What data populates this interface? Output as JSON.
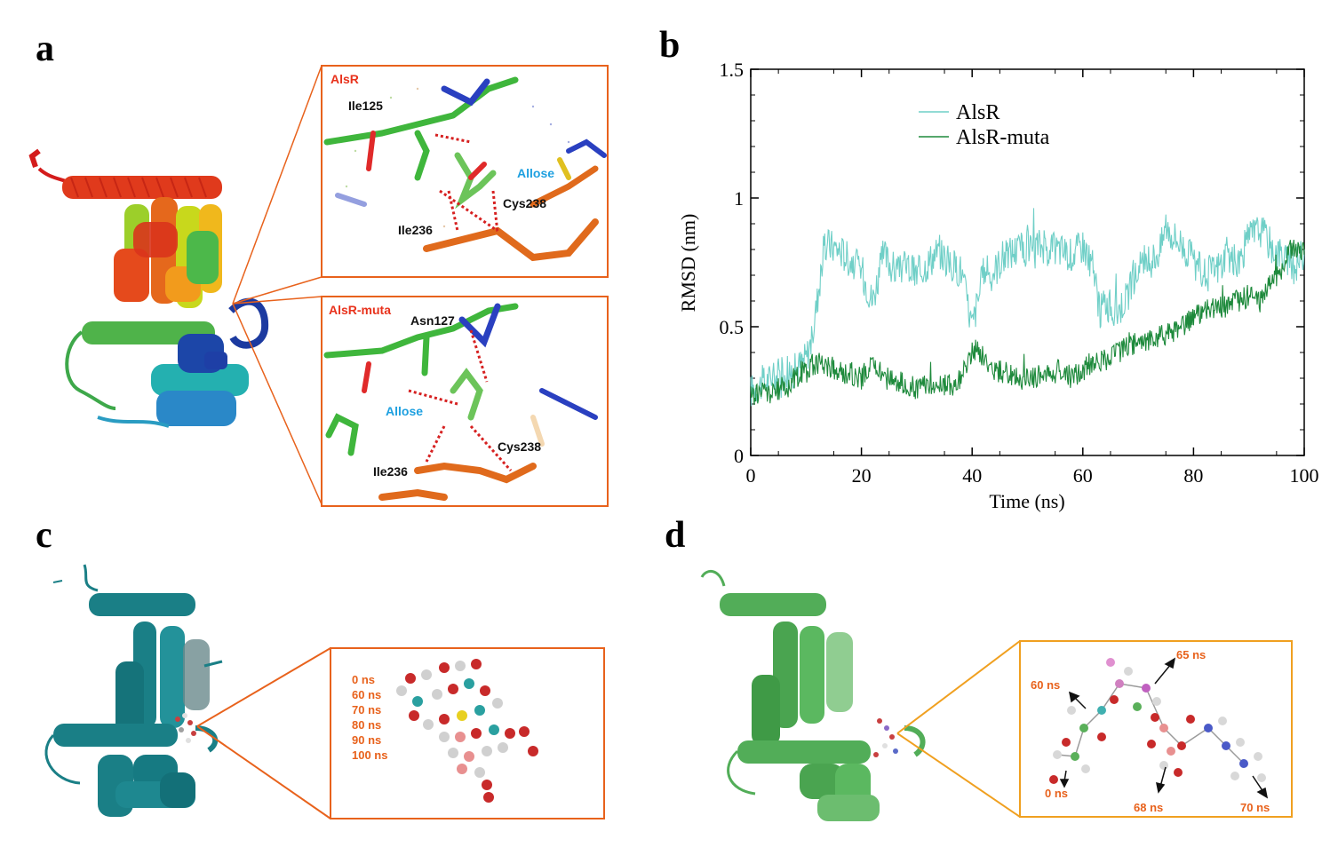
{
  "panels": {
    "a": {
      "letter": "a",
      "top_inset": {
        "title": "AlsR",
        "residues": [
          "Ile125",
          "Allose",
          "Cys238",
          "Ile236"
        ]
      },
      "bottom_inset": {
        "title": "AlsR-muta",
        "residues": [
          "Asn127",
          "Allose",
          "Cys238",
          "Ile236"
        ]
      }
    },
    "b": {
      "letter": "b"
    },
    "c": {
      "letter": "c",
      "times": [
        "0 ns",
        "60 ns",
        "70 ns",
        "80 ns",
        "90 ns",
        "100 ns"
      ]
    },
    "d": {
      "letter": "d",
      "time_labels": {
        "t0": "0 ns",
        "t60": "60 ns",
        "t65": "65 ns",
        "t68": "68 ns",
        "t70": "70 ns"
      }
    }
  },
  "colors": {
    "alsr": "#6fcfc7",
    "alsr_muta": "#1e8a3c",
    "callout_orange": "#e8621c",
    "callout_amber": "#f0a020",
    "teal_protein": "#1a7f86",
    "green_protein": "#52ad58",
    "label_red": "#e8321c",
    "label_blue": "#1ea0e0"
  },
  "chart_data": {
    "type": "line",
    "xlabel": "Time (ns)",
    "ylabel": "RMSD (nm)",
    "xlim": [
      0,
      100
    ],
    "ylim": [
      0,
      1.5
    ],
    "x_ticks": [
      0,
      20,
      40,
      60,
      80,
      100
    ],
    "y_ticks": [
      0,
      0.5,
      1,
      1.5
    ],
    "y_tick_labels": [
      "0",
      "0.5",
      "1",
      "1.5"
    ],
    "legend_position": "top-center",
    "series": [
      {
        "name": "AlsR",
        "color": "#6fcfc7",
        "x": [
          0,
          2,
          4,
          6,
          8,
          10,
          11,
          12,
          13,
          14,
          16,
          18,
          20,
          22,
          24,
          26,
          28,
          30,
          32,
          34,
          36,
          38,
          40,
          41,
          42,
          44,
          46,
          48,
          50,
          52,
          54,
          56,
          58,
          60,
          62,
          63,
          64,
          66,
          68,
          70,
          72,
          74,
          75,
          76,
          78,
          80,
          82,
          84,
          86,
          88,
          90,
          92,
          94,
          96,
          98,
          100
        ],
        "y": [
          0.25,
          0.28,
          0.3,
          0.32,
          0.33,
          0.38,
          0.45,
          0.6,
          0.78,
          0.82,
          0.8,
          0.76,
          0.72,
          0.6,
          0.78,
          0.72,
          0.74,
          0.7,
          0.75,
          0.8,
          0.74,
          0.72,
          0.5,
          0.6,
          0.7,
          0.72,
          0.78,
          0.8,
          0.8,
          0.82,
          0.8,
          0.8,
          0.78,
          0.82,
          0.72,
          0.55,
          0.6,
          0.55,
          0.62,
          0.72,
          0.75,
          0.8,
          0.9,
          0.86,
          0.82,
          0.75,
          0.7,
          0.72,
          0.78,
          0.74,
          0.85,
          0.88,
          0.82,
          0.78,
          0.72,
          0.8
        ]
      },
      {
        "name": "AlsR-muta",
        "color": "#1e8a3c",
        "x": [
          0,
          2,
          4,
          6,
          8,
          10,
          12,
          14,
          16,
          18,
          20,
          22,
          24,
          26,
          28,
          30,
          32,
          34,
          36,
          38,
          40,
          41,
          42,
          44,
          46,
          48,
          50,
          52,
          54,
          56,
          58,
          60,
          62,
          64,
          66,
          68,
          70,
          72,
          74,
          76,
          78,
          80,
          82,
          84,
          86,
          88,
          90,
          92,
          94,
          96,
          98,
          100
        ],
        "y": [
          0.23,
          0.25,
          0.24,
          0.27,
          0.3,
          0.34,
          0.36,
          0.35,
          0.32,
          0.32,
          0.3,
          0.36,
          0.3,
          0.3,
          0.27,
          0.26,
          0.27,
          0.28,
          0.27,
          0.3,
          0.4,
          0.42,
          0.38,
          0.33,
          0.32,
          0.3,
          0.3,
          0.31,
          0.32,
          0.33,
          0.3,
          0.33,
          0.37,
          0.37,
          0.4,
          0.42,
          0.44,
          0.45,
          0.46,
          0.48,
          0.5,
          0.54,
          0.56,
          0.58,
          0.58,
          0.6,
          0.62,
          0.6,
          0.68,
          0.72,
          0.82,
          0.78
        ]
      }
    ]
  }
}
